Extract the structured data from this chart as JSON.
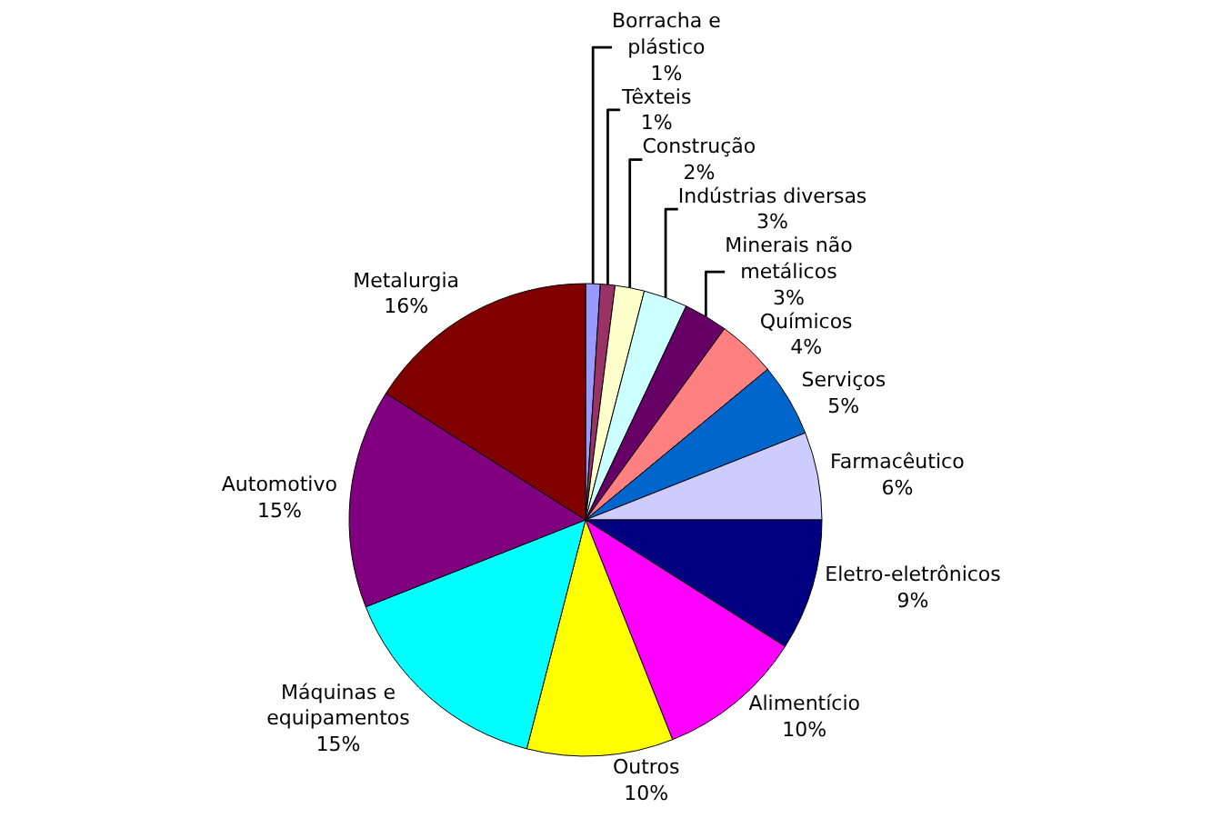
{
  "chart_data": {
    "type": "pie",
    "categories": [
      "Borracha e\nplástico",
      "Têxteis",
      "Construção",
      "Indústrias diversas",
      "Minerais não\nmetálicos",
      "Químicos",
      "Serviços",
      "Farmacêutico",
      "Eletro-eletrônicos",
      "Alimentício",
      "Outros",
      "Máquinas e\nequipamentos",
      "Automotivo",
      "Metalurgia"
    ],
    "values": [
      1,
      1,
      2,
      3,
      3,
      4,
      5,
      6,
      9,
      10,
      10,
      15,
      15,
      16
    ],
    "colors": [
      "#9999ff",
      "#993366",
      "#ffffcc",
      "#ccffff",
      "#660066",
      "#ff8080",
      "#0066cc",
      "#ccccff",
      "#000080",
      "#ff00ff",
      "#ffff00",
      "#00ffff",
      "#800080",
      "#800000"
    ],
    "value_labels": [
      "1%",
      "1%",
      "2%",
      "3%",
      "3%",
      "4%",
      "5%",
      "6%",
      "9%",
      "10%",
      "10%",
      "15%",
      "15%",
      "16%"
    ],
    "legend": false
  }
}
